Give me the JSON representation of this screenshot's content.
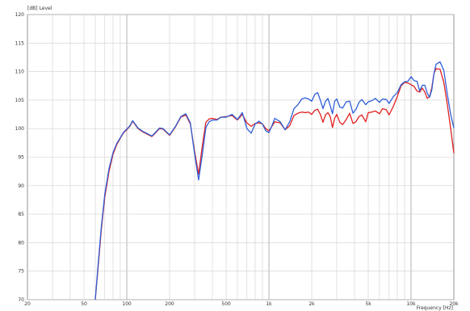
{
  "chart_data": {
    "type": "line",
    "title": "",
    "ylabel": "[dB]  Level",
    "xlabel": "Frequency  [Hz]",
    "x_scale": "log",
    "xlim": [
      20,
      20000
    ],
    "ylim": [
      70,
      120
    ],
    "grid": true,
    "legend": "none",
    "x_ticks": [
      20,
      50,
      100,
      200,
      500,
      1000,
      2000,
      5000,
      10000,
      20000
    ],
    "x_tick_labels": [
      "20",
      "50",
      "100",
      "200",
      "500",
      "1k",
      "2k",
      "5k",
      "10k",
      "20k"
    ],
    "y_ticks": [
      70,
      75,
      80,
      85,
      90,
      95,
      100,
      105,
      110,
      115,
      120
    ],
    "y_tick_labels": [
      "70",
      "75",
      "80",
      "85",
      "90",
      "95",
      "100",
      "105",
      "110",
      "115",
      "120"
    ],
    "series": [
      {
        "color": "#e02020",
        "x": [
          60,
          63,
          66,
          70,
          75,
          80,
          85,
          90,
          95,
          100,
          105,
          110,
          120,
          130,
          140,
          150,
          160,
          170,
          180,
          200,
          220,
          240,
          260,
          280,
          300,
          320,
          340,
          360,
          380,
          400,
          430,
          460,
          500,
          550,
          600,
          650,
          700,
          750,
          800,
          850,
          900,
          950,
          1000,
          1050,
          1100,
          1200,
          1300,
          1400,
          1500,
          1600,
          1700,
          1800,
          1900,
          2000,
          2100,
          2200,
          2300,
          2400,
          2500,
          2600,
          2700,
          2800,
          2900,
          3000,
          3150,
          3300,
          3500,
          3700,
          3900,
          4100,
          4300,
          4500,
          4800,
          5000,
          5300,
          5600,
          6000,
          6300,
          6700,
          7000,
          7500,
          8000,
          8500,
          9000,
          9500,
          10000,
          10500,
          11000,
          11500,
          12000,
          12500,
          13000,
          13500,
          14000,
          14500,
          15000,
          16000,
          17000,
          18000,
          19000,
          20000
        ],
        "y": [
          70,
          76,
          82,
          88,
          92.5,
          95.5,
          97.2,
          98.3,
          99.3,
          99.8,
          100.4,
          101.3,
          100,
          99.4,
          99,
          98.6,
          99.3,
          100,
          99.9,
          98.8,
          100.3,
          102,
          102.4,
          100.8,
          96,
          92,
          97,
          101.1,
          101.7,
          101.8,
          101.6,
          102,
          102.1,
          102.3,
          101.5,
          102.5,
          101,
          100.4,
          100.9,
          101,
          100.8,
          100,
          99.6,
          100.4,
          101.2,
          101,
          99.8,
          100.5,
          102.3,
          102.7,
          102.9,
          102.8,
          102.9,
          102.5,
          103.2,
          103.4,
          102.5,
          101.1,
          102.4,
          102.8,
          102.1,
          100.2,
          101.8,
          102.5,
          101.1,
          100.7,
          101.6,
          102.7,
          100.9,
          101.2,
          102.1,
          102.4,
          101.2,
          102.8,
          102.9,
          103.1,
          102.6,
          103.5,
          103.3,
          102.4,
          103.9,
          105.6,
          107.5,
          108.1,
          108,
          107.7,
          107.4,
          106.6,
          106.4,
          107.1,
          106.4,
          105.3,
          105.6,
          107.2,
          109.7,
          110.5,
          110.4,
          108.1,
          104.2,
          100,
          95.7
        ]
      },
      {
        "color": "#2f5fd8",
        "x": [
          60,
          63,
          66,
          70,
          75,
          80,
          85,
          90,
          95,
          100,
          105,
          110,
          120,
          130,
          140,
          150,
          160,
          170,
          180,
          200,
          220,
          240,
          260,
          280,
          300,
          320,
          340,
          360,
          380,
          400,
          430,
          460,
          500,
          550,
          600,
          650,
          700,
          750,
          800,
          850,
          900,
          950,
          1000,
          1050,
          1100,
          1200,
          1300,
          1400,
          1500,
          1600,
          1700,
          1800,
          1900,
          2000,
          2100,
          2200,
          2300,
          2400,
          2500,
          2600,
          2700,
          2800,
          2900,
          3000,
          3150,
          3300,
          3500,
          3700,
          3900,
          4100,
          4300,
          4500,
          4800,
          5000,
          5300,
          5600,
          6000,
          6300,
          6700,
          7000,
          7500,
          8000,
          8500,
          9000,
          9500,
          10000,
          10500,
          11000,
          11500,
          12000,
          12500,
          13000,
          13500,
          14000,
          14500,
          15000,
          16000,
          17000,
          18000,
          19000,
          20000
        ],
        "y": [
          70,
          76.5,
          82.5,
          88.5,
          93,
          95.8,
          97.4,
          98.4,
          99.4,
          99.9,
          100.5,
          101.4,
          100.1,
          99.5,
          99.1,
          98.7,
          99.4,
          100.1,
          100,
          98.9,
          100.4,
          102.1,
          102.6,
          101,
          95.5,
          91,
          95.5,
          100.2,
          101.2,
          101.5,
          101.5,
          102,
          102,
          102.5,
          101.6,
          102.8,
          100,
          99.2,
          100.8,
          101.3,
          100.8,
          99.6,
          99.3,
          100.5,
          101.8,
          101.2,
          99.8,
          101.2,
          103.5,
          104.2,
          105.2,
          105.4,
          105.2,
          104.8,
          106,
          106.3,
          105,
          103.5,
          104.8,
          105.3,
          104,
          102.6,
          104.8,
          105.2,
          103.8,
          103.6,
          104.7,
          104.8,
          102.7,
          103.4,
          104.6,
          105.1,
          104.2,
          104.7,
          104.9,
          105.3,
          104.6,
          105.2,
          105.1,
          104.4,
          105.6,
          106.3,
          107.7,
          108.2,
          108.3,
          109.1,
          108.4,
          108.3,
          106.6,
          107.6,
          107.6,
          106.2,
          105.5,
          106.8,
          109.7,
          111.3,
          111.7,
          110.2,
          106,
          102.5,
          100.1
        ]
      }
    ]
  }
}
